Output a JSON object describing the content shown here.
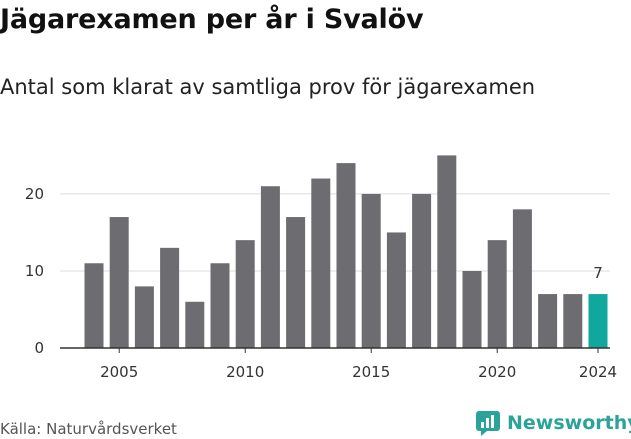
{
  "title": "Jägarexamen per år i Svalöv",
  "subtitle": "Antal som klarat av samtliga prov för jägarexamen",
  "source": "Källa: Naturvårdsverket",
  "brand": {
    "name": "Newsworthy",
    "icon": "newsworthy-logo-icon",
    "color": "#2aa39a"
  },
  "colors": {
    "bar": "#6d6c71",
    "highlight": "#0fa79e",
    "axis": "#333333",
    "grid": "#dddddd"
  },
  "chart_data": {
    "type": "bar",
    "x": [
      2004,
      2005,
      2006,
      2007,
      2008,
      2009,
      2010,
      2011,
      2012,
      2013,
      2014,
      2015,
      2016,
      2017,
      2018,
      2019,
      2020,
      2021,
      2022,
      2023,
      2024
    ],
    "values": [
      11,
      17,
      8,
      13,
      6,
      11,
      14,
      21,
      17,
      22,
      24,
      20,
      15,
      20,
      25,
      10,
      14,
      18,
      7,
      7,
      7
    ],
    "xticks": [
      "2005",
      "2010",
      "2015",
      "2020",
      "2024"
    ],
    "yticks": [
      "0",
      "10",
      "20"
    ],
    "ylim": [
      0,
      27
    ],
    "highlight": {
      "x": 2024,
      "label": "7"
    },
    "grid": true,
    "title": "Jägarexamen per år i Svalöv",
    "xlabel": "",
    "ylabel": ""
  }
}
